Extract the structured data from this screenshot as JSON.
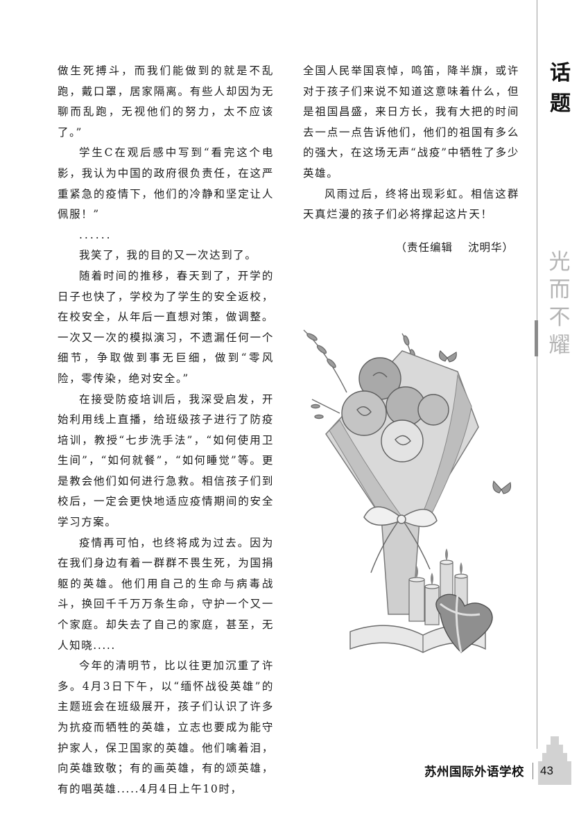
{
  "left_column": [
    {
      "text": "做生死搏斗，而我们能做到的就是不乱跑，戴口罩，居家隔离。有些人却因为无聊而乱跑，无视他们的努力，太不应该了。”",
      "indent": false
    },
    {
      "text": "学生C在观后感中写到“看完这个电影，我认为中国的政府很负责任，在这严重紧急的疫情下，他们的冷静和坚定让人佩服！”",
      "indent": true
    },
    {
      "text": "......",
      "indent": true,
      "dots": true
    },
    {
      "text": "我笑了，我的目的又一次达到了。",
      "indent": true
    },
    {
      "text": "随着时间的推移，春天到了，开学的日子也快了，学校为了学生的安全返校，在校安全，从年后一直想对策，做调整。一次又一次的模拟演习，不遗漏任何一个细节，争取做到事无巨细，做到“零风险，零传染，绝对安全。”",
      "indent": true
    },
    {
      "text": "在接受防疫培训后，我深受启发，开始利用线上直播，给班级孩子进行了防疫培训，教授“七步洗手法”，“如何使用卫生间”，“如何就餐”，“如何睡觉”等。更是教会他们如何进行急救。相信孩子们到校后，一定会更快地适应疫情期间的安全学习方案。",
      "indent": true
    },
    {
      "text": "疫情再可怕，也终将成为过去。因为在我们身边有着一群群不畏生死，为国捐躯的英雄。他们用自己的生命与病毒战斗，换回千千万万条生命，守护一个又一个家庭。却失去了自己的家庭，甚至，无人知晓.....",
      "indent": true
    },
    {
      "text": "今年的清明节，比以往更加沉重了许多。4月3日下午，以“缅怀战役英雄”的主题班会在班级展开，孩子们认识了许多为抗疫而牺牲的英雄，立志也要成为能守护家人，保卫国家的英雄。他们噙着泪，向英雄致敬；有的画英雄，有的颂英雄，有的唱英雄.....4月4日上午10时，",
      "indent": true
    }
  ],
  "right_column": [
    {
      "text": "全国人民举国哀悼，鸣笛，降半旗，或许对于孩子们来说不知道这意味着什么，但是祖国昌盛，来日方长，我有大把的时间去一点一点告诉他们，他们的祖国有多么的强大，在这场无声“战疫”中牺牲了多少英雄。",
      "indent": false
    },
    {
      "text": "风雨过后，终将出现彩虹。相信这群天真烂漫的孩子们必将撑起这片天！",
      "indent": true
    }
  ],
  "editor": {
    "label": "（责任编辑",
    "name": "沈明华）"
  },
  "sidebar": {
    "topic_chars": [
      "话",
      "题"
    ],
    "slogan_chars": [
      "光",
      "而",
      "不",
      "耀"
    ]
  },
  "footer": {
    "school": "苏州国际外语学校",
    "page_number": "43"
  },
  "illustration": {
    "description_icon": "flower-bouquet-icon"
  },
  "colors": {
    "text": "#1a1a1a",
    "slogan": "#b5b5b5",
    "rule": "#9a9a9a"
  }
}
